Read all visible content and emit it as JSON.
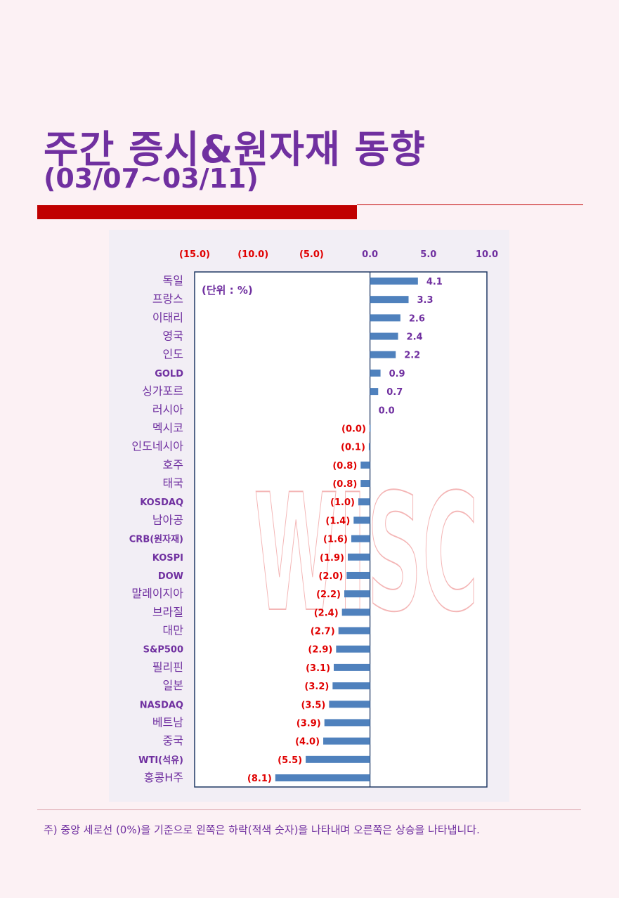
{
  "header": {
    "title": "주간 증시&원자재 동향",
    "subtitle": "(03/07~03/11)"
  },
  "colors": {
    "title": "#7030a0",
    "accent_bar": "#c00000",
    "bar": "#4f81bd",
    "negative_label": "#e00000",
    "positive_label": "#7030a0",
    "plot_border": "#1f3864"
  },
  "chart_data": {
    "type": "bar",
    "orientation": "horizontal",
    "unit_label": "(단위 : %)",
    "xlim": [
      -15,
      10
    ],
    "xticks": [
      -15,
      -10,
      -5,
      0,
      5,
      10
    ],
    "xtick_labels": [
      "(15.0)",
      "(10.0)",
      "(5.0)",
      "0.0",
      "5.0",
      "10.0"
    ],
    "categories": [
      "독일",
      "프랑스",
      "이태리",
      "영국",
      "인도",
      "GOLD",
      "싱가포르",
      "러시아",
      "멕시코",
      "인도네시아",
      "호주",
      "태국",
      "KOSDAQ",
      "남아공",
      "CRB(원자재)",
      "KOSPI",
      "DOW",
      "말레이지아",
      "브라질",
      "대만",
      "S&P500",
      "필리핀",
      "일본",
      "NASDAQ",
      "베트남",
      "중국",
      "WTI(석유)",
      "홍콩H주"
    ],
    "values": [
      4.1,
      3.3,
      2.6,
      2.4,
      2.2,
      0.9,
      0.7,
      0.0,
      -0.04,
      -0.1,
      -0.8,
      -0.8,
      -1.0,
      -1.4,
      -1.6,
      -1.9,
      -2.0,
      -2.2,
      -2.4,
      -2.7,
      -2.9,
      -3.1,
      -3.2,
      -3.5,
      -3.9,
      -4.0,
      -5.5,
      -8.1
    ],
    "value_labels": [
      "4.1",
      "3.3",
      "2.6",
      "2.4",
      "2.2",
      "0.9",
      "0.7",
      "0.0",
      "(0.0)",
      "(0.1)",
      "(0.8)",
      "(0.8)",
      "(1.0)",
      "(1.4)",
      "(1.6)",
      "(1.9)",
      "(2.0)",
      "(2.2)",
      "(2.4)",
      "(2.7)",
      "(2.9)",
      "(3.1)",
      "(3.2)",
      "(3.5)",
      "(3.9)",
      "(4.0)",
      "(5.5)",
      "(8.1)"
    ],
    "watermark": "WISC"
  },
  "footnote": "주) 중앙 세로선 (0%)을 기준으로 왼쪽은 하락(적색 숫자)을 나타내며 오른쪽은 상승을 나타냅니다."
}
